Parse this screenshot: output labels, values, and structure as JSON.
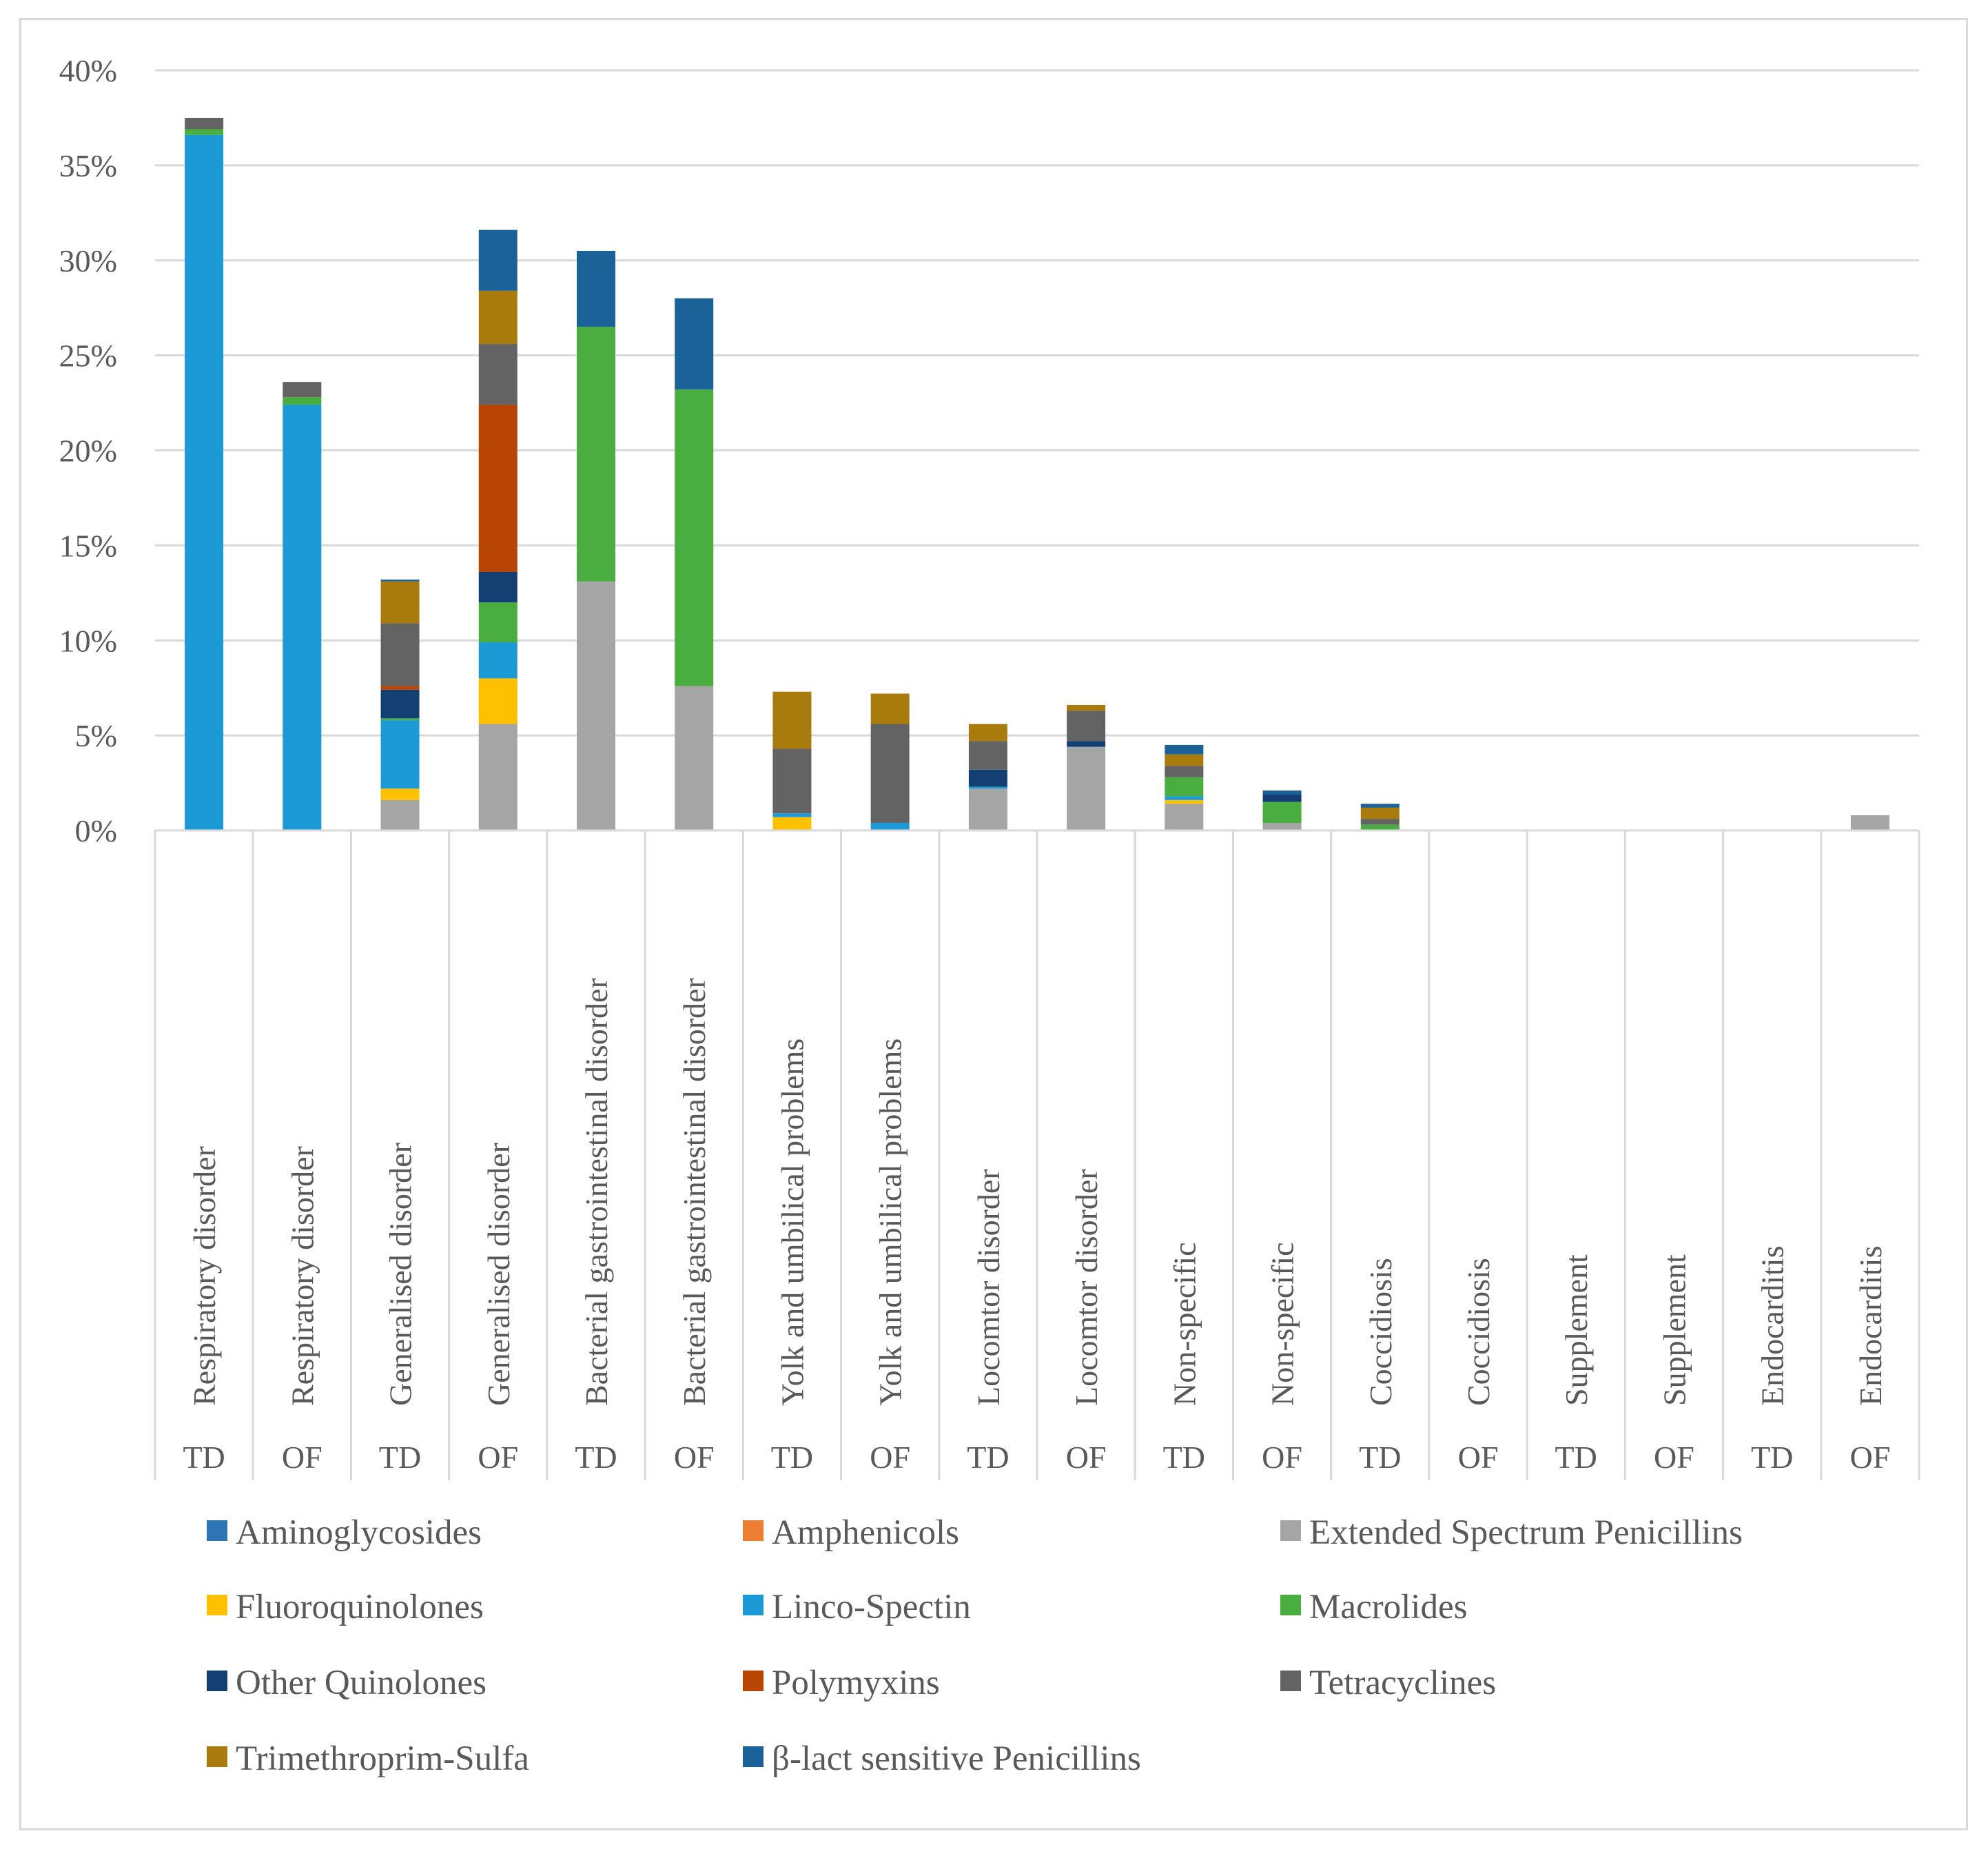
{
  "chart_data": {
    "type": "bar",
    "stacked": true,
    "title": "",
    "xlabel": "",
    "ylabel": "",
    "ylim": [
      0,
      40
    ],
    "yticks": [
      "0%",
      "5%",
      "10%",
      "15%",
      "20%",
      "25%",
      "30%",
      "35%",
      "40%"
    ],
    "categories": [
      {
        "label": "Respiratory disorder",
        "group": "TD"
      },
      {
        "label": "Respiratory disorder",
        "group": "OF"
      },
      {
        "label": "Generalised disorder",
        "group": "TD"
      },
      {
        "label": "Generalised disorder",
        "group": "OF"
      },
      {
        "label": "Bacterial gastrointestinal disorder",
        "group": "TD"
      },
      {
        "label": "Bacterial gastrointestinal disorder",
        "group": "OF"
      },
      {
        "label": "Yolk and umbilical problems",
        "group": "TD"
      },
      {
        "label": "Yolk and umbilical problems",
        "group": "OF"
      },
      {
        "label": "Locomtor disorder",
        "group": "TD"
      },
      {
        "label": "Locomtor disorder",
        "group": "OF"
      },
      {
        "label": "Non-specific",
        "group": "TD"
      },
      {
        "label": "Non-specific",
        "group": "OF"
      },
      {
        "label": "Coccidiosis",
        "group": "TD"
      },
      {
        "label": "Coccidiosis",
        "group": "OF"
      },
      {
        "label": "Supplement",
        "group": "TD"
      },
      {
        "label": "Supplement",
        "group": "OF"
      },
      {
        "label": "Endocarditis",
        "group": "TD"
      },
      {
        "label": "Endocarditis",
        "group": "OF"
      }
    ],
    "series": [
      {
        "name": "Aminoglycosides",
        "color": "#2e75b6",
        "values": [
          0,
          0,
          0,
          0,
          0,
          0,
          0,
          0,
          0,
          0,
          0,
          0,
          0,
          0,
          0,
          0,
          0,
          0
        ]
      },
      {
        "name": "Amphenicols",
        "color": "#ed7d31",
        "values": [
          0,
          0,
          0,
          0,
          0,
          0,
          0,
          0,
          0,
          0,
          0,
          0,
          0,
          0,
          0,
          0,
          0,
          0
        ]
      },
      {
        "name": "Extended Spectrum Penicillins",
        "color": "#a5a5a5",
        "values": [
          0,
          0,
          1.6,
          5.6,
          13.1,
          7.6,
          0,
          0,
          2.2,
          4.4,
          1.4,
          0.4,
          0,
          0,
          0,
          0,
          0,
          0.8
        ]
      },
      {
        "name": "Fluoroquinolones",
        "color": "#ffc000",
        "values": [
          0,
          0,
          0.6,
          2.4,
          0,
          0,
          0.7,
          0,
          0,
          0,
          0.2,
          0,
          0,
          0,
          0,
          0,
          0,
          0
        ]
      },
      {
        "name": "Linco-Spectin",
        "color": "#1b9ad6",
        "values": [
          36.6,
          22.4,
          3.6,
          1.9,
          0,
          0,
          0.2,
          0.4,
          0.1,
          0,
          0.2,
          0,
          0,
          0,
          0,
          0,
          0,
          0
        ]
      },
      {
        "name": "Macrolides",
        "color": "#4aad3f",
        "values": [
          0.3,
          0.4,
          0.1,
          2.1,
          13.4,
          15.6,
          0,
          0,
          0,
          0,
          1.0,
          1.1,
          0.3,
          0,
          0,
          0,
          0,
          0
        ]
      },
      {
        "name": "Other Quinolones",
        "color": "#143f73",
        "values": [
          0,
          0,
          1.5,
          1.6,
          0,
          0,
          0,
          0,
          0.9,
          0.3,
          0,
          0.4,
          0,
          0,
          0,
          0,
          0,
          0
        ]
      },
      {
        "name": "Polymyxins",
        "color": "#b94505",
        "values": [
          0,
          0,
          0.2,
          8.8,
          0,
          0,
          0,
          0,
          0,
          0,
          0,
          0,
          0,
          0,
          0,
          0,
          0,
          0
        ]
      },
      {
        "name": "Tetracyclines",
        "color": "#636363",
        "values": [
          0.6,
          0.8,
          3.3,
          3.2,
          0,
          0,
          3.4,
          5.2,
          1.5,
          1.6,
          0.6,
          0,
          0.3,
          0,
          0,
          0,
          0,
          0
        ]
      },
      {
        "name": "Trimethroprim-Sulfa",
        "color": "#a87b0c",
        "values": [
          0,
          0,
          2.2,
          2.8,
          0,
          0,
          3.0,
          1.6,
          0.9,
          0.3,
          0.6,
          0,
          0.6,
          0,
          0,
          0,
          0,
          0
        ]
      },
      {
        "name": "β-lact sensitive Penicillins",
        "color": "#1a6298",
        "values": [
          0,
          0,
          0.1,
          3.2,
          4.0,
          4.8,
          0,
          0,
          0,
          0,
          0.5,
          0.2,
          0.2,
          0,
          0,
          0,
          0,
          0
        ]
      }
    ],
    "legend_position": "bottom",
    "grid": true
  }
}
